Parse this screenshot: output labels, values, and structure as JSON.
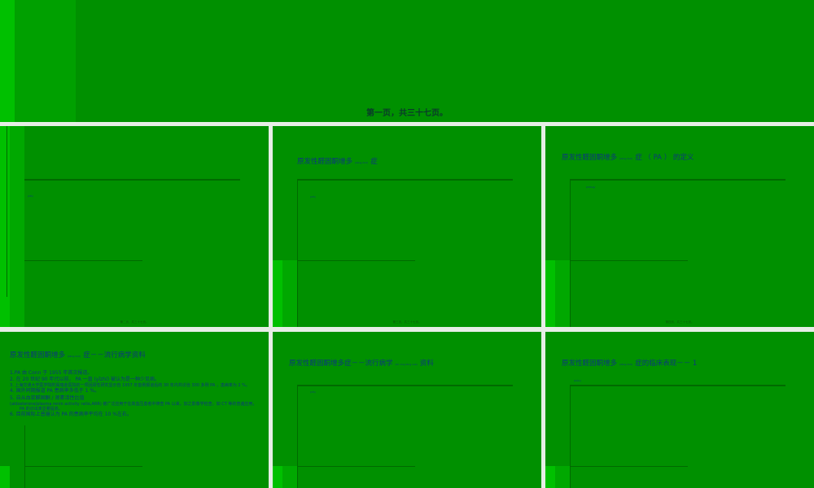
{
  "slides": [
    {
      "footer": "第一页，共三十七页。"
    },
    {
      "tiny": "(zhì)",
      "footer": "第二页，共三十七页。"
    },
    {
      "title": "原发性醛固酮增多",
      "ruby": "(zēng duō)",
      "title_end": "症",
      "tiny": "(zhì)",
      "footer": "第三页，共三十七页。"
    },
    {
      "title": "原发性醛固酮增多",
      "ruby": "(zēng duō)",
      "title_end": "症 （ PA ） 的定义",
      "tiny": "(zhòng)",
      "footer": "第四页，共三十七页。"
    },
    {
      "title": "原发性醛固酮增多",
      "ruby": "(zēng duō)",
      "title_end": "症－－流行病学资料",
      "lines": [
        "1.PA 由 Conn 于 1955 年首次报道。",
        "2. 在 20 世纪 90 年代以前， PA 一直 (yīzhí) 被认为是一种少见病。",
        "3. 上海交通大学医学院附属瑞金医院的一项回顾性研究显示自 1957 年首例报道后的 30 年内共诊治 300 多例 PA ，患病率为 2 %。",
        "4. 国外同期报道 PA 患病率多低于 1 %。",
        "5. 自从血浆醛固酮 / 肾素活性比值",
        "(aldosterone/plasma renin activity ratio,ARR) 被广泛应用于在高血压患者中筛查 PA 以来，加之影像学检查，如 CT 等的普遍应用， PA 的诊出率显著提高。",
        "6. 目前国际上普遍认为 PA 的患病率平均在 10 %左右。"
      ]
    },
    {
      "title": "原发性醛固酮增多症－－流行病学",
      "ruby": "(liú xíng bìng xué)",
      "title_end": "资料",
      "tiny": "(zhì)"
    },
    {
      "title": "原发性醛固酮增多",
      "ruby": "(zēng duō)",
      "title_end": "症的临床表现－－ 1",
      "tiny": "(biǎo)"
    }
  ],
  "colors": {
    "slide_bg": "#009000",
    "title": "#0a3a7a",
    "page_bg": "#e6eee6"
  }
}
